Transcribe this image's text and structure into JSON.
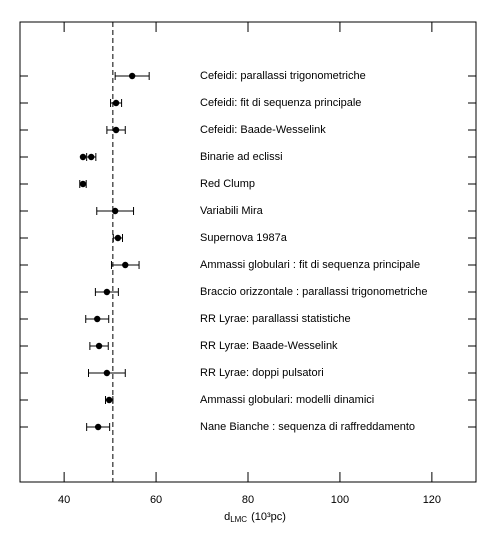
{
  "chart_data": {
    "type": "dot-error",
    "categories": [
      "Cefeidi: parallassi trigonometriche",
      "Cefeidi: fit di sequenza principale",
      "Cefeidi: Baade-Wesselink",
      "Binarie ad eclissi",
      "Red Clump",
      "Variabili Mira",
      "Supernova 1987a",
      "Ammassi globulari : fit di sequenza principale",
      "Braccio orizzontale : parallassi trigonometriche",
      "RR Lyrae: parallassi statistiche",
      "RR Lyrae: Baade-Wesselink",
      "RR Lyrae: doppi pulsatori",
      "Ammassi globulari: modelli dinamici",
      "Nane Bianche : sequenza di raffreddamento"
    ],
    "series": [
      {
        "color": "#000000",
        "values": [
          54.8,
          51.3,
          51.3,
          45.9,
          44.1,
          51.1,
          51.7,
          53.3,
          49.3,
          47.2,
          47.6,
          49.3,
          49.8,
          47.4
        ],
        "errors": [
          3.7,
          1.2,
          2,
          1,
          0.7,
          4,
          1,
          3,
          2.5,
          2.5,
          2,
          4,
          0.8,
          2.5
        ]
      },
      {
        "color": "#000000",
        "values": [
          null,
          null,
          null,
          44.1,
          null,
          null,
          null,
          null,
          null,
          null,
          null,
          null,
          null,
          null
        ]
      }
    ],
    "reference_line": 50.6,
    "x_label": "d",
    "x_label_sub": "LMC",
    "x_label_unit": "(10³pc)",
    "xlim": [
      30.4,
      129.6
    ],
    "xticks": [
      40,
      60,
      80,
      100,
      120
    ]
  }
}
